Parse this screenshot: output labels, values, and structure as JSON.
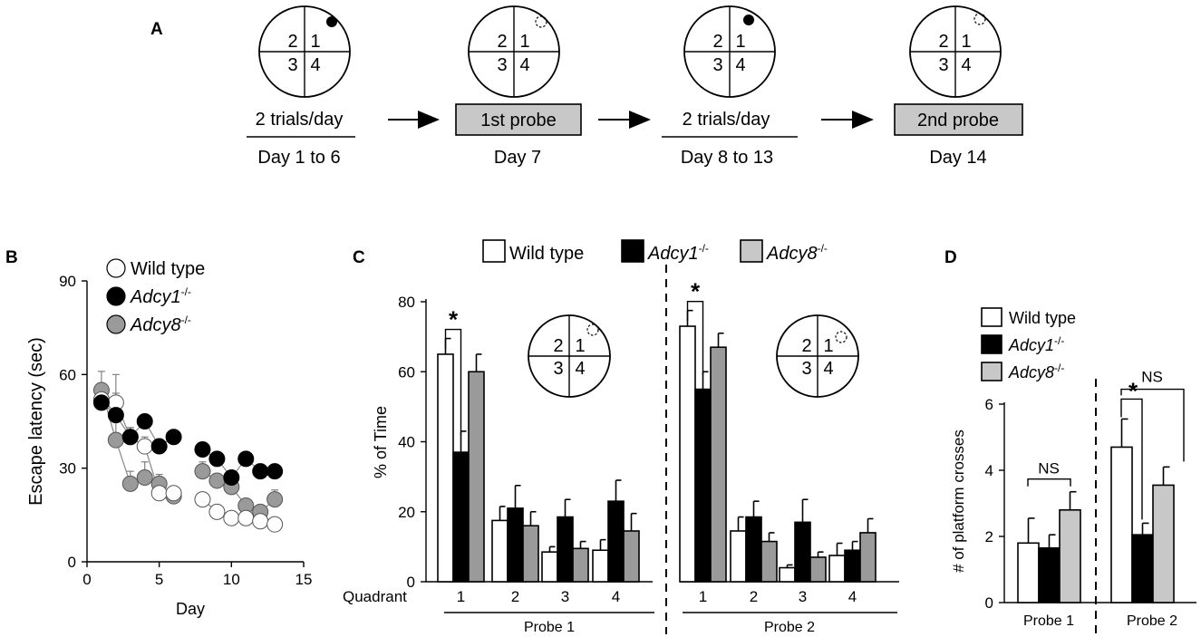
{
  "colors": {
    "wild_type": "#ffffff",
    "adcy1": "#000000",
    "adcy8_b": "#9a9a9a",
    "adcy8_cd": "#c8c8c8",
    "probe_box": "#c8c8c8"
  },
  "panel_labels": {
    "a": "A",
    "b": "B",
    "c": "C",
    "d": "D"
  },
  "quadrant_numbers": [
    "1",
    "2",
    "3",
    "4"
  ],
  "legend": {
    "wild_type": "Wild type",
    "adcy1_base": "Adcy1",
    "adcy8_base": "Adcy8",
    "superscript": "-/-"
  },
  "protocol": {
    "steps": [
      {
        "label": "2 trials/day",
        "day": "Day 1 to 6",
        "boxed": false,
        "platform": "present"
      },
      {
        "label": "1st probe",
        "day": "Day 7",
        "boxed": true,
        "platform": "removed"
      },
      {
        "label": "2 trials/day",
        "day": "Day 8 to 13",
        "boxed": false,
        "platform": "present"
      },
      {
        "label": "2nd probe",
        "day": "Day 14",
        "boxed": true,
        "platform": "removed"
      }
    ]
  },
  "significance": {
    "star": "*",
    "ns": "NS"
  },
  "chart_data": [
    {
      "id": "B",
      "type": "scatter",
      "xlabel": "Day",
      "ylabel": "Escape latency (sec)",
      "xlim": [
        0,
        15
      ],
      "ylim": [
        0,
        90
      ],
      "xticks": [
        "0",
        "5",
        "10",
        "15"
      ],
      "yticks": [
        "0",
        "30",
        "60",
        "90"
      ],
      "series": [
        {
          "name": "Wild type",
          "x": [
            1,
            2,
            3,
            4,
            5,
            6,
            8,
            9,
            10,
            11,
            12,
            13
          ],
          "y": [
            52,
            51,
            40,
            37,
            22,
            22,
            20,
            16,
            14,
            14,
            13,
            12
          ],
          "err": [
            4,
            3,
            3,
            3,
            2,
            2,
            2,
            1,
            1,
            1,
            1,
            1
          ]
        },
        {
          "name": "Adcy1-/-",
          "x": [
            1,
            2,
            3,
            4,
            5,
            6,
            8,
            9,
            10,
            11,
            12,
            13
          ],
          "y": [
            51,
            47,
            40,
            45,
            37,
            40,
            36,
            33,
            27,
            33,
            29,
            29
          ],
          "err": [
            3,
            2,
            3,
            2,
            2,
            2,
            2,
            2,
            2,
            2,
            1,
            1
          ]
        },
        {
          "name": "Adcy8-/-",
          "x": [
            1,
            2,
            3,
            4,
            5,
            6,
            8,
            9,
            10,
            11,
            12,
            13
          ],
          "y": [
            55,
            39,
            25,
            27,
            25,
            21,
            29,
            26,
            24,
            18,
            16,
            20
          ],
          "err": [
            6,
            21,
            4,
            5,
            3,
            2,
            3,
            2,
            2,
            2,
            2,
            3
          ]
        }
      ]
    },
    {
      "id": "C",
      "type": "bar",
      "ylabel": "% of Time",
      "xaxis_prefix": "Quadrant",
      "ylim": [
        0,
        80
      ],
      "yticks": [
        "0",
        "20",
        "40",
        "60",
        "80"
      ],
      "categories": [
        "1",
        "2",
        "3",
        "4"
      ],
      "groups": [
        "Probe 1",
        "Probe 2"
      ],
      "series": [
        {
          "name": "Wild type",
          "probe1": [
            65,
            17.5,
            8.5,
            9
          ],
          "probe1_err": [
            4.5,
            4,
            1.5,
            3
          ],
          "probe2": [
            73,
            14.5,
            4,
            7.5
          ],
          "probe2_err": [
            4.5,
            4,
            0.8,
            3.5
          ]
        },
        {
          "name": "Adcy1-/-",
          "probe1": [
            37,
            21,
            18.5,
            23
          ],
          "probe1_err": [
            6,
            6.5,
            5,
            6
          ],
          "probe2": [
            55,
            18.5,
            17,
            9
          ],
          "probe2_err": [
            5,
            4.5,
            6.5,
            2.5
          ]
        },
        {
          "name": "Adcy8-/-",
          "probe1": [
            60,
            16,
            9.5,
            14.5
          ],
          "probe1_err": [
            5,
            4,
            2,
            5
          ],
          "probe2": [
            67,
            11.5,
            7,
            14
          ],
          "probe2_err": [
            4,
            2.5,
            1.5,
            4
          ]
        }
      ]
    },
    {
      "id": "D",
      "type": "bar",
      "ylabel": "# of platform crosses",
      "ylim": [
        0,
        6
      ],
      "yticks": [
        "0",
        "2",
        "4",
        "6"
      ],
      "groups": [
        "Probe 1",
        "Probe 2"
      ],
      "series": [
        {
          "name": "Wild type",
          "values": [
            1.8,
            4.7
          ],
          "err": [
            0.75,
            0.85
          ]
        },
        {
          "name": "Adcy1-/-",
          "values": [
            1.65,
            2.05
          ],
          "err": [
            0.4,
            0.35
          ]
        },
        {
          "name": "Adcy8-/-",
          "values": [
            2.8,
            3.55
          ],
          "err": [
            0.55,
            0.55
          ]
        }
      ]
    }
  ]
}
